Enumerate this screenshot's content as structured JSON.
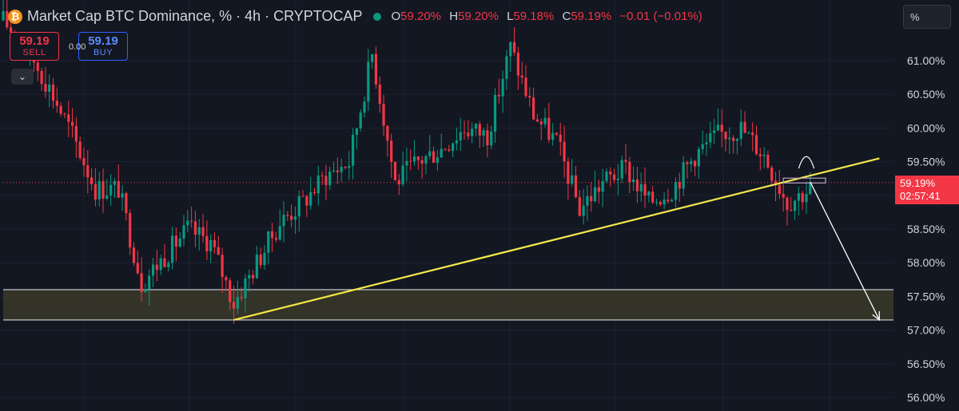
{
  "header": {
    "coin_symbol": "₿",
    "title": "Market Cap BTC Dominance, % · 4h · CRYPTOCAP",
    "open_label": "O",
    "open": "59.20%",
    "high_label": "H",
    "high": "59.20%",
    "low_label": "L",
    "low": "59.18%",
    "close_label": "C",
    "close": "59.19%",
    "change": "−0.01 (−0.01%)"
  },
  "trade": {
    "sell_price": "59.19",
    "sell_label": "SELL",
    "spread": "0.00",
    "buy_price": "59.19",
    "buy_label": "BUY"
  },
  "scale_mode": "%",
  "current_price": {
    "value": "59.19%",
    "countdown": "02:57:41"
  },
  "colors": {
    "background": "#131722",
    "up": "#089981",
    "down": "#f23645",
    "trendline": "#f5e84a",
    "zone": "#3a3a28"
  },
  "icons": {
    "collapse": "chevron-down-icon"
  },
  "chart_data": {
    "type": "candlestick",
    "ylim": [
      55.8,
      62.0
    ],
    "y_ticks": [
      "61.00%",
      "60.50%",
      "60.00%",
      "59.50%",
      "59.00%",
      "58.50%",
      "58.00%",
      "57.50%",
      "57.00%",
      "56.50%",
      "56.00%"
    ],
    "grid": true,
    "series_path": [
      [
        0,
        61.6
      ],
      [
        6,
        61.2
      ],
      [
        12,
        60.6
      ],
      [
        18,
        59.9
      ],
      [
        24,
        59.1
      ],
      [
        30,
        59.1
      ],
      [
        36,
        57.7
      ],
      [
        42,
        58.1
      ],
      [
        48,
        58.5
      ],
      [
        54,
        58.3
      ],
      [
        60,
        57.4
      ],
      [
        66,
        58.0
      ],
      [
        72,
        58.6
      ],
      [
        78,
        58.9
      ],
      [
        84,
        59.3
      ],
      [
        90,
        59.5
      ],
      [
        96,
        61.1
      ],
      [
        102,
        59.2
      ],
      [
        108,
        59.5
      ],
      [
        114,
        59.7
      ],
      [
        120,
        60.0
      ],
      [
        126,
        59.9
      ],
      [
        132,
        61.2
      ],
      [
        138,
        60.2
      ],
      [
        144,
        59.8
      ],
      [
        150,
        58.8
      ],
      [
        156,
        59.2
      ],
      [
        162,
        59.4
      ],
      [
        168,
        58.9
      ],
      [
        174,
        59.1
      ],
      [
        180,
        59.6
      ],
      [
        186,
        59.9
      ],
      [
        192,
        60.0
      ],
      [
        198,
        59.6
      ],
      [
        204,
        58.9
      ],
      [
        210,
        59.1
      ]
    ],
    "support_zone": [
      57.15,
      57.6
    ],
    "trendline": {
      "start": [
        60,
        57.15
      ],
      "end": [
        228,
        59.55
      ]
    },
    "projection": {
      "start": [
        210,
        59.2
      ],
      "end": [
        228,
        57.15
      ]
    },
    "current_level": 59.19
  }
}
